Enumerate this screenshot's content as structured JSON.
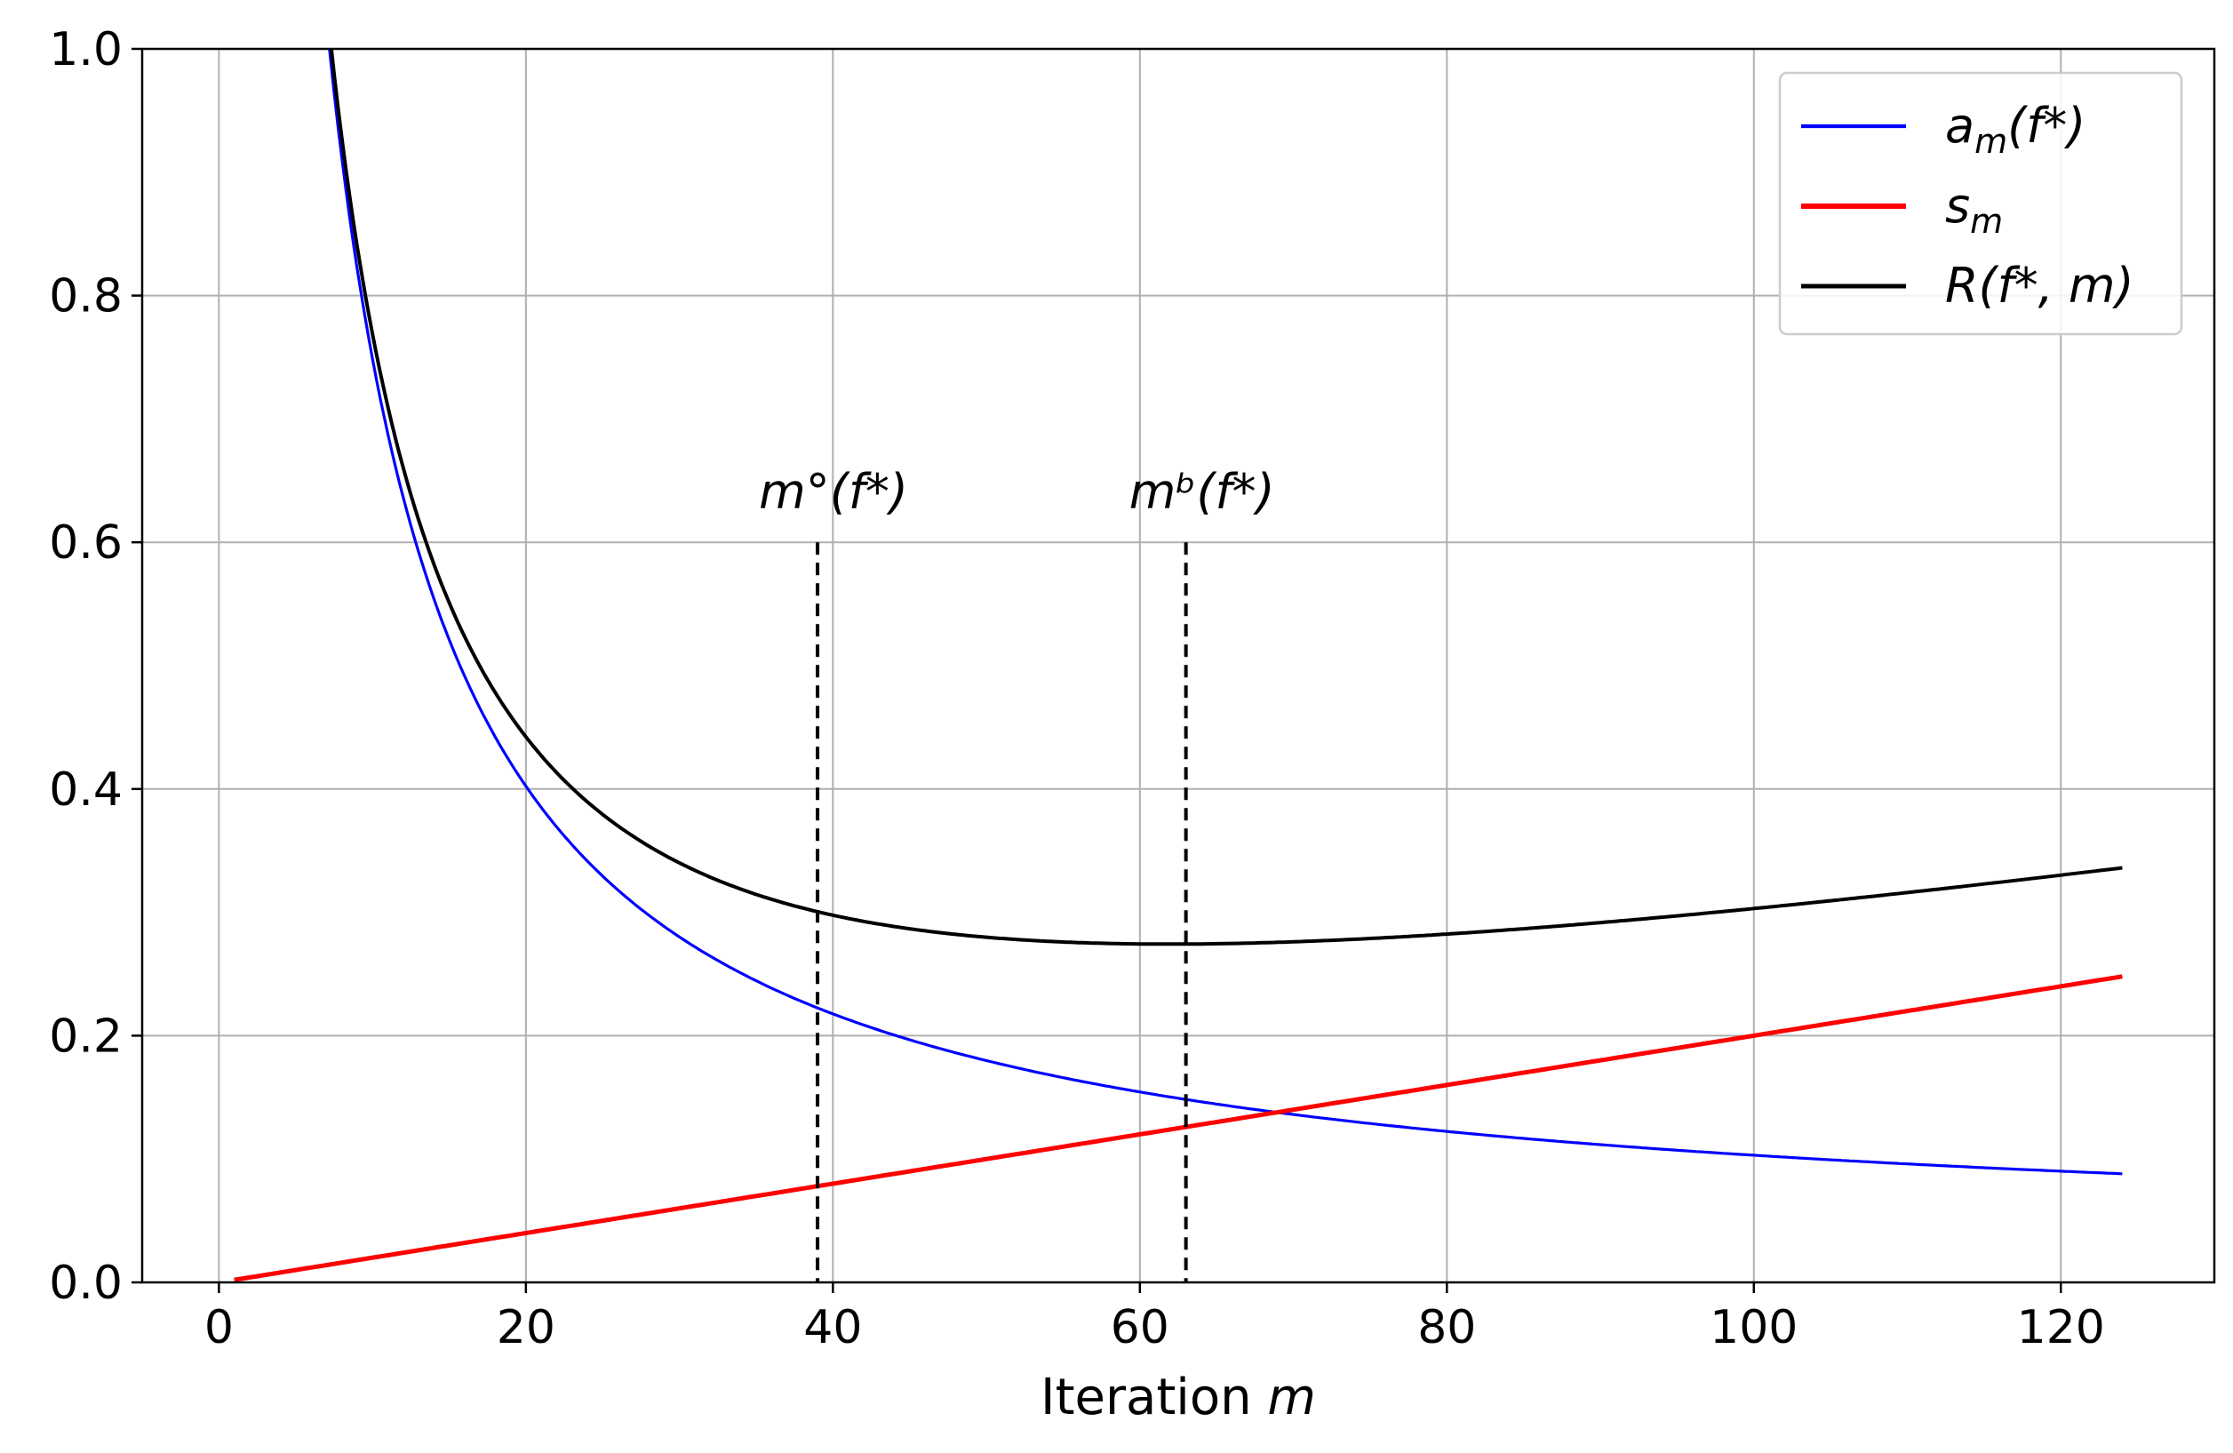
{
  "chart_data": {
    "type": "line",
    "xlabel": "Iteration m",
    "ylabel": "",
    "xlim": [
      -5,
      130
    ],
    "ylim": [
      0.0,
      1.0
    ],
    "grid": true,
    "legend_position": "top-right",
    "x_ticks": [
      "0",
      "20",
      "40",
      "60",
      "80",
      "100",
      "120"
    ],
    "y_ticks": [
      "0.0",
      "0.2",
      "0.4",
      "0.6",
      "0.8",
      "1.0"
    ],
    "series": [
      {
        "name": "a_m(f*)",
        "label_main": "a",
        "label_sub": "m",
        "label_tail": "(f*)",
        "color": "#0000ff",
        "formula": "7.875/(m+0.875)+0.025",
        "x_start": 1,
        "x_end": 124
      },
      {
        "name": "s_m",
        "label_main": "s",
        "label_sub": "m",
        "label_tail": "",
        "color": "#ff0000",
        "formula": "0.002*m",
        "x_start": 1,
        "x_end": 124
      },
      {
        "name": "R(f*, m)",
        "label_main": "R(f*, m)",
        "label_sub": "",
        "label_tail": "",
        "color": "#000000",
        "formula": "a_m + s_m",
        "x_start": 1,
        "x_end": 124
      }
    ],
    "vlines": [
      {
        "x": 39,
        "y_top": 0.6,
        "label": "m°(f*)",
        "style": "dashed"
      },
      {
        "x": 63,
        "y_top": 0.6,
        "label": "mᵇ(f*)",
        "style": "dashed"
      }
    ]
  }
}
